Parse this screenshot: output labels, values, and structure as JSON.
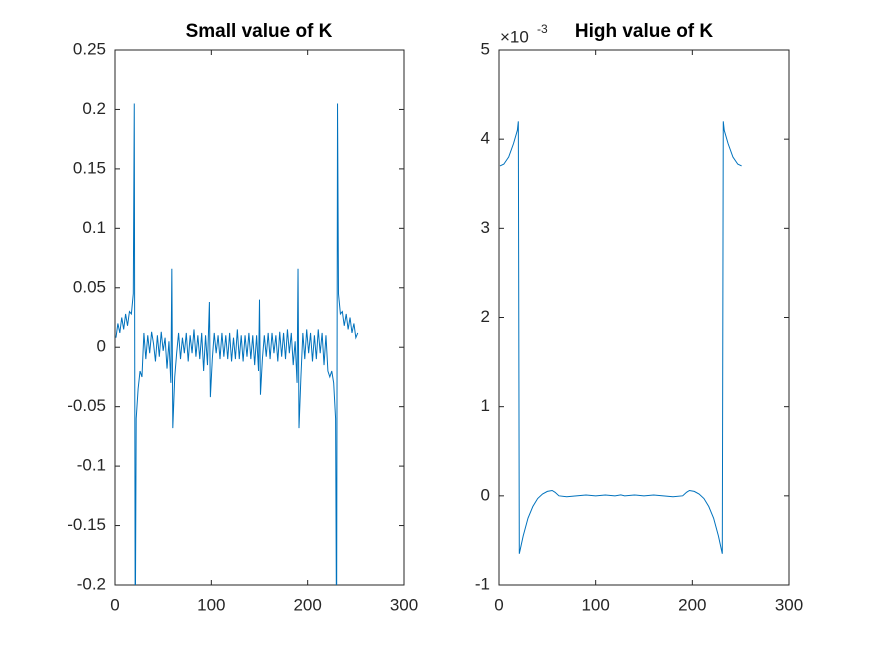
{
  "chart_data": [
    {
      "type": "line",
      "title": "Small value of K",
      "color": "#0072bd",
      "xlim": [
        0,
        300
      ],
      "xticks": [
        0,
        100,
        200,
        300
      ],
      "ylim": [
        -0.2,
        0.25
      ],
      "yticks": [
        -0.2,
        -0.15,
        -0.1,
        -0.05,
        0,
        0.05,
        0.1,
        0.15,
        0.2,
        0.25
      ],
      "x": [
        1,
        3,
        5,
        7,
        9,
        11,
        13,
        15,
        17,
        19,
        20,
        21,
        22,
        24,
        26,
        28,
        30,
        32,
        34,
        36,
        38,
        40,
        42,
        44,
        46,
        48,
        50,
        52,
        54,
        56,
        58,
        59,
        60,
        62,
        64,
        66,
        68,
        70,
        72,
        74,
        76,
        78,
        80,
        82,
        84,
        86,
        88,
        90,
        92,
        94,
        96,
        98,
        99,
        101,
        103,
        105,
        107,
        109,
        111,
        113,
        115,
        117,
        119,
        121,
        123,
        125,
        127,
        129,
        131,
        133,
        135,
        137,
        139,
        141,
        143,
        145,
        147,
        149,
        150,
        151,
        153,
        155,
        157,
        159,
        161,
        163,
        165,
        167,
        169,
        171,
        173,
        175,
        177,
        179,
        181,
        183,
        185,
        187,
        189,
        190,
        191,
        193,
        195,
        197,
        199,
        201,
        203,
        205,
        207,
        209,
        211,
        213,
        215,
        217,
        219,
        221,
        223,
        225,
        227,
        229,
        230,
        231,
        232,
        234,
        236,
        238,
        240,
        242,
        244,
        246,
        248,
        250,
        252
      ],
      "values": [
        0.008,
        0.02,
        0.012,
        0.025,
        0.015,
        0.028,
        0.018,
        0.03,
        0.028,
        0.045,
        0.205,
        -0.25,
        -0.06,
        -0.035,
        -0.02,
        -0.025,
        0.012,
        -0.01,
        0.01,
        -0.005,
        0.013,
        0.003,
        -0.012,
        0.01,
        -0.008,
        0.013,
        -0.003,
        0.008,
        -0.018,
        0.005,
        -0.03,
        0.066,
        -0.068,
        -0.025,
        -0.005,
        0.012,
        -0.01,
        0.008,
        -0.005,
        0.012,
        -0.012,
        0.01,
        -0.005,
        0.015,
        -0.008,
        0.01,
        -0.01,
        0.012,
        -0.02,
        0.01,
        -0.015,
        0.038,
        -0.042,
        -0.01,
        0.012,
        -0.005,
        0.01,
        -0.01,
        0.012,
        -0.008,
        0.01,
        -0.01,
        0.012,
        -0.012,
        0.008,
        -0.01,
        0.015,
        -0.01,
        0.01,
        -0.012,
        0.01,
        -0.008,
        0.012,
        -0.01,
        0.01,
        -0.015,
        0.01,
        -0.02,
        0.04,
        -0.04,
        -0.01,
        0.01,
        -0.008,
        0.012,
        -0.01,
        0.012,
        -0.005,
        0.01,
        -0.012,
        0.013,
        -0.008,
        0.012,
        -0.01,
        0.015,
        -0.005,
        0.012,
        -0.015,
        0.005,
        -0.03,
        0.066,
        -0.068,
        -0.025,
        0.012,
        -0.01,
        0.015,
        -0.005,
        0.012,
        -0.012,
        0.01,
        -0.01,
        0.015,
        -0.005,
        0.012,
        -0.015,
        0.01,
        -0.02,
        -0.025,
        -0.02,
        -0.03,
        -0.06,
        -0.25,
        0.205,
        0.045,
        0.028,
        0.03,
        0.018,
        0.028,
        0.015,
        0.025,
        0.012,
        0.02,
        0.008,
        0.012
      ]
    },
    {
      "type": "line",
      "title": "High value of K",
      "color": "#0072bd",
      "y_exponent_base": "×10",
      "y_exponent": "-3",
      "xlim": [
        0,
        300
      ],
      "xticks": [
        0,
        100,
        200,
        300
      ],
      "ylim": [
        -1,
        5
      ],
      "yticks": [
        -1,
        0,
        1,
        2,
        3,
        4,
        5
      ],
      "x": [
        1,
        5,
        10,
        15,
        19,
        20,
        21,
        25,
        30,
        35,
        40,
        45,
        50,
        55,
        58,
        62,
        70,
        80,
        90,
        100,
        110,
        120,
        126,
        130,
        140,
        150,
        160,
        170,
        180,
        190,
        194,
        197,
        202,
        207,
        212,
        217,
        222,
        227,
        231,
        232,
        233,
        237,
        242,
        247,
        251
      ],
      "values": [
        3.7,
        3.72,
        3.8,
        3.95,
        4.1,
        4.2,
        -0.65,
        -0.45,
        -0.25,
        -0.12,
        -0.03,
        0.02,
        0.05,
        0.06,
        0.04,
        0,
        -0.01,
        0,
        0.01,
        0,
        0.01,
        0,
        0.01,
        0,
        0.01,
        0,
        0.01,
        0,
        -0.01,
        0,
        0.04,
        0.06,
        0.05,
        0.02,
        -0.03,
        -0.12,
        -0.25,
        -0.45,
        -0.65,
        4.2,
        4.1,
        3.95,
        3.8,
        3.72,
        3.7
      ]
    }
  ]
}
